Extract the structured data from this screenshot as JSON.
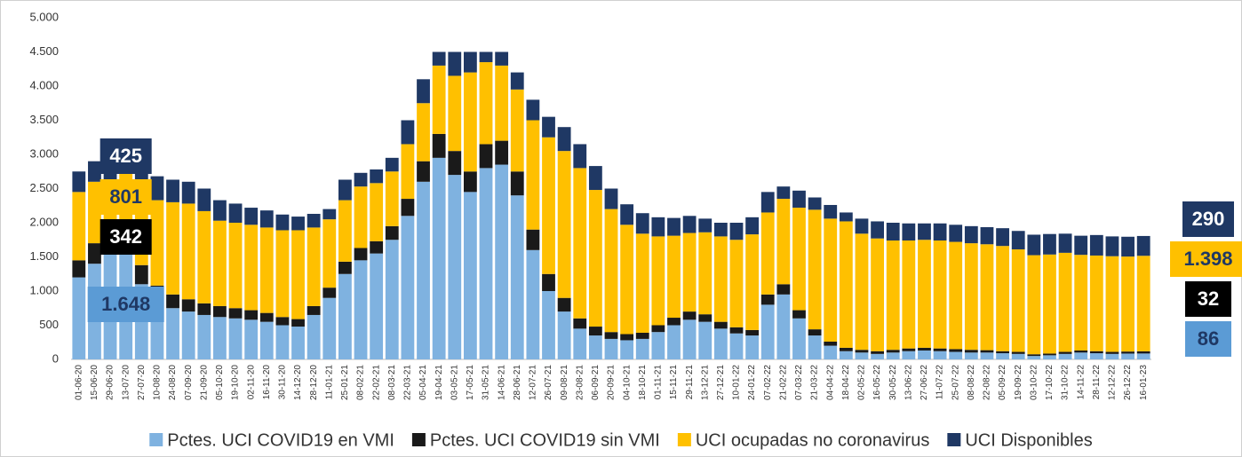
{
  "chart_data": {
    "type": "stacked_bar",
    "categories": [
      "01-06-20",
      "15-06-20",
      "29-06-20",
      "13-07-20",
      "27-07-20",
      "10-08-20",
      "24-08-20",
      "07-09-20",
      "21-09-20",
      "05-10-20",
      "19-10-20",
      "02-11-20",
      "16-11-20",
      "30-11-20",
      "14-12-20",
      "28-12-20",
      "11-01-21",
      "25-01-21",
      "08-02-21",
      "22-02-21",
      "08-03-21",
      "22-03-21",
      "05-04-21",
      "19-04-21",
      "03-05-21",
      "17-05-21",
      "31-05-21",
      "14-06-21",
      "28-06-21",
      "12-07-21",
      "26-07-21",
      "09-08-21",
      "23-08-21",
      "06-09-21",
      "20-09-21",
      "04-10-21",
      "18-10-21",
      "01-11-21",
      "15-11-21",
      "29-11-21",
      "13-12-21",
      "27-12-21",
      "10-01-22",
      "24-01-22",
      "07-02-22",
      "21-02-22",
      "07-03-22",
      "21-03-22",
      "04-04-22",
      "18-04-22",
      "02-05-22",
      "16-05-22",
      "30-05-22",
      "13-06-22",
      "27-06-22",
      "11-07-22",
      "25-07-22",
      "08-08-22",
      "22-08-22",
      "05-09-22",
      "19-09-22",
      "03-10-22",
      "17-10-22",
      "31-10-22",
      "14-11-22",
      "28-11-22",
      "12-12-22",
      "26-12-22",
      "16-01-23"
    ],
    "series": [
      {
        "name": "Pctes. UCI COVID19 en VMI",
        "color": "#7fb2e0",
        "values": [
          1200,
          1400,
          1550,
          1648,
          1100,
          850,
          750,
          700,
          650,
          620,
          600,
          580,
          550,
          500,
          480,
          650,
          900,
          1250,
          1450,
          1550,
          1750,
          2100,
          2600,
          2950,
          2700,
          2450,
          2800,
          2850,
          2400,
          1600,
          1000,
          700,
          450,
          350,
          300,
          280,
          300,
          400,
          500,
          580,
          550,
          450,
          380,
          350,
          800,
          950,
          600,
          350,
          200,
          120,
          100,
          80,
          100,
          120,
          130,
          120,
          110,
          100,
          100,
          90,
          80,
          50,
          60,
          80,
          100,
          90,
          80,
          85,
          86
        ],
        "value_labels": [
          null,
          null,
          null,
          "1.648",
          null,
          null,
          null,
          null,
          null,
          null,
          null,
          null,
          null,
          null,
          null,
          null,
          null,
          null,
          null,
          null,
          null,
          null,
          null,
          null,
          null,
          null,
          null,
          null,
          null,
          null,
          null,
          null,
          null,
          null,
          null,
          null,
          null,
          null,
          null,
          null,
          null,
          null,
          null,
          null,
          null,
          null,
          null,
          null,
          null,
          null,
          null,
          null,
          null,
          null,
          null,
          null,
          null,
          null,
          null,
          null,
          null,
          null,
          null,
          null,
          null,
          null,
          null,
          null,
          "86"
        ]
      },
      {
        "name": "Pctes. UCI COVID19 sin VMI",
        "color": "#1a1a1a",
        "values": [
          250,
          300,
          330,
          342,
          280,
          230,
          200,
          180,
          170,
          160,
          150,
          140,
          130,
          120,
          110,
          130,
          150,
          180,
          180,
          180,
          200,
          250,
          300,
          350,
          350,
          300,
          350,
          350,
          350,
          300,
          250,
          200,
          150,
          130,
          100,
          90,
          90,
          100,
          110,
          120,
          110,
          100,
          90,
          80,
          150,
          150,
          120,
          90,
          60,
          50,
          40,
          40,
          40,
          40,
          40,
          40,
          40,
          40,
          35,
          30,
          30,
          25,
          25,
          30,
          30,
          30,
          30,
          30,
          32
        ],
        "value_labels": [
          null,
          null,
          null,
          "342",
          null,
          null,
          null,
          null,
          null,
          null,
          null,
          null,
          null,
          null,
          null,
          null,
          null,
          null,
          null,
          null,
          null,
          null,
          null,
          null,
          null,
          null,
          null,
          null,
          null,
          null,
          null,
          null,
          null,
          null,
          null,
          null,
          null,
          null,
          null,
          null,
          null,
          null,
          null,
          null,
          null,
          null,
          null,
          null,
          null,
          null,
          null,
          null,
          null,
          null,
          null,
          null,
          null,
          null,
          null,
          null,
          null,
          null,
          null,
          null,
          null,
          null,
          null,
          null,
          "32"
        ]
      },
      {
        "name": "UCI ocupadas no coronavirus",
        "color": "#ffc000",
        "values": [
          1000,
          900,
          750,
          801,
          1000,
          1250,
          1350,
          1400,
          1350,
          1250,
          1250,
          1250,
          1250,
          1270,
          1300,
          1150,
          1000,
          900,
          900,
          850,
          800,
          800,
          850,
          1000,
          1100,
          1450,
          1200,
          1100,
          1200,
          1600,
          2000,
          2150,
          2200,
          2000,
          1800,
          1600,
          1450,
          1300,
          1200,
          1150,
          1200,
          1250,
          1280,
          1400,
          1200,
          1250,
          1500,
          1750,
          1800,
          1850,
          1700,
          1650,
          1600,
          1580,
          1580,
          1580,
          1570,
          1560,
          1550,
          1540,
          1500,
          1450,
          1450,
          1450,
          1400,
          1400,
          1400,
          1390,
          1398
        ],
        "value_labels": [
          null,
          null,
          null,
          "801",
          null,
          null,
          null,
          null,
          null,
          null,
          null,
          null,
          null,
          null,
          null,
          null,
          null,
          null,
          null,
          null,
          null,
          null,
          null,
          null,
          null,
          null,
          null,
          null,
          null,
          null,
          null,
          null,
          null,
          null,
          null,
          null,
          null,
          null,
          null,
          null,
          null,
          null,
          null,
          null,
          null,
          null,
          null,
          null,
          null,
          null,
          null,
          null,
          null,
          null,
          null,
          null,
          null,
          null,
          null,
          null,
          null,
          null,
          null,
          null,
          null,
          null,
          null,
          null,
          "1.398"
        ]
      },
      {
        "name": "UCI Disponibles",
        "color": "#1f3864",
        "values": [
          300,
          300,
          320,
          425,
          350,
          350,
          330,
          320,
          330,
          300,
          280,
          250,
          250,
          230,
          200,
          200,
          150,
          300,
          200,
          200,
          200,
          350,
          350,
          200,
          350,
          300,
          150,
          200,
          250,
          300,
          300,
          350,
          350,
          350,
          300,
          300,
          300,
          280,
          260,
          250,
          200,
          200,
          250,
          250,
          300,
          180,
          250,
          180,
          200,
          130,
          220,
          250,
          260,
          250,
          240,
          250,
          250,
          250,
          250,
          260,
          270,
          300,
          300,
          280,
          280,
          300,
          290,
          290,
          290
        ],
        "value_labels": [
          null,
          null,
          null,
          "425",
          null,
          null,
          null,
          null,
          null,
          null,
          null,
          null,
          null,
          null,
          null,
          null,
          null,
          null,
          null,
          null,
          null,
          null,
          null,
          null,
          null,
          null,
          null,
          null,
          null,
          null,
          null,
          null,
          null,
          null,
          null,
          null,
          null,
          null,
          null,
          null,
          null,
          null,
          null,
          null,
          null,
          null,
          null,
          null,
          null,
          null,
          null,
          null,
          null,
          null,
          null,
          null,
          null,
          null,
          null,
          null,
          null,
          null,
          null,
          null,
          null,
          null,
          null,
          null,
          "290"
        ]
      }
    ],
    "ylim": [
      0,
      5000
    ],
    "yticks": [
      0,
      500,
      {
        "value": 1000,
        "label": "1.000"
      },
      {
        "value": 1500,
        "label": "1.500"
      },
      {
        "value": 2000,
        "label": "2.000"
      },
      {
        "value": 2500,
        "label": "2.500"
      },
      {
        "value": 3000,
        "label": "3.000"
      },
      {
        "value": 3500,
        "label": "3.500"
      },
      {
        "value": 4000,
        "label": "4.000"
      },
      {
        "value": 4500,
        "label": "4.500"
      },
      {
        "value": 5000,
        "label": "5.000"
      }
    ],
    "grid": false,
    "legend": "bottom"
  }
}
